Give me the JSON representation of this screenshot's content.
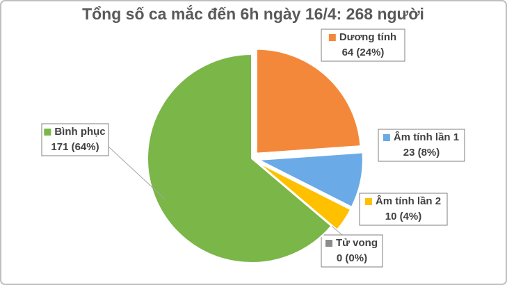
{
  "chart_data": {
    "type": "pie",
    "title": "Tổng số ca mắc đến 6h ngày 16/4: 268 người",
    "categories": [
      "Dương tính",
      "Âm tính lần 1",
      "Âm tính lần 2",
      "Tử vong",
      "Bình phục"
    ],
    "values": [
      64,
      23,
      10,
      0,
      171
    ],
    "value_labels": [
      "64 (24%)",
      "23 (8%)",
      "10 (4%)",
      "0 (0%)",
      "171 (64%)"
    ],
    "colors": [
      "#f4883a",
      "#6aaae6",
      "#ffc000",
      "#8c8c8c",
      "#7ab648"
    ],
    "explode": [
      true,
      true,
      true,
      true,
      false
    ]
  }
}
